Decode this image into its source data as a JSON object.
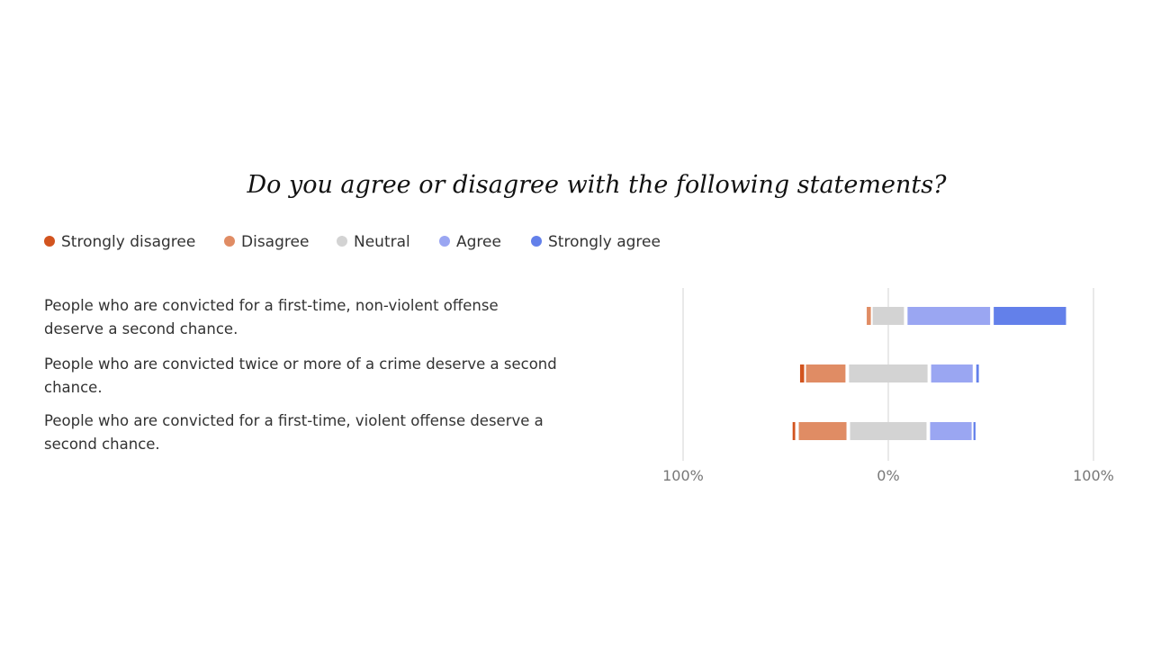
{
  "title": "Do you agree or disagree with the following statements?",
  "legend": [
    {
      "label": "Strongly disagree",
      "color": "#d2541f"
    },
    {
      "label": "Disagree",
      "color": "#e08c64"
    },
    {
      "label": "Neutral",
      "color": "#d3d3d3"
    },
    {
      "label": "Agree",
      "color": "#9aa6f2"
    },
    {
      "label": "Strongly agree",
      "color": "#6380ea"
    }
  ],
  "chart_data": {
    "type": "bar",
    "subtype": "diverging-stacked",
    "categories": [
      "People who are convicted for a first-time, non-violent offense deserve a second chance.",
      "People who are convicted twice or more of a crime deserve a second chance.",
      "People who are convicted for a first-time, violent offense deserve a second chance."
    ],
    "series": [
      {
        "name": "Strongly disagree",
        "color": "#d2541f",
        "values": [
          0,
          2,
          3
        ]
      },
      {
        "name": "Disagree",
        "color": "#e08c64",
        "values": [
          2,
          21,
          25
        ]
      },
      {
        "name": "Neutral",
        "color": "#d3d3d3",
        "values": [
          17,
          40,
          39
        ]
      },
      {
        "name": "Agree",
        "color": "#9aa6f2",
        "values": [
          42,
          22,
          22
        ]
      },
      {
        "name": "Strongly agree",
        "color": "#6380ea",
        "values": [
          37,
          3,
          1
        ]
      }
    ],
    "xlim": [
      -100,
      100
    ],
    "xticks": [
      "100%",
      "0%",
      "100%"
    ],
    "grid": true,
    "legend_position": "top-left"
  }
}
